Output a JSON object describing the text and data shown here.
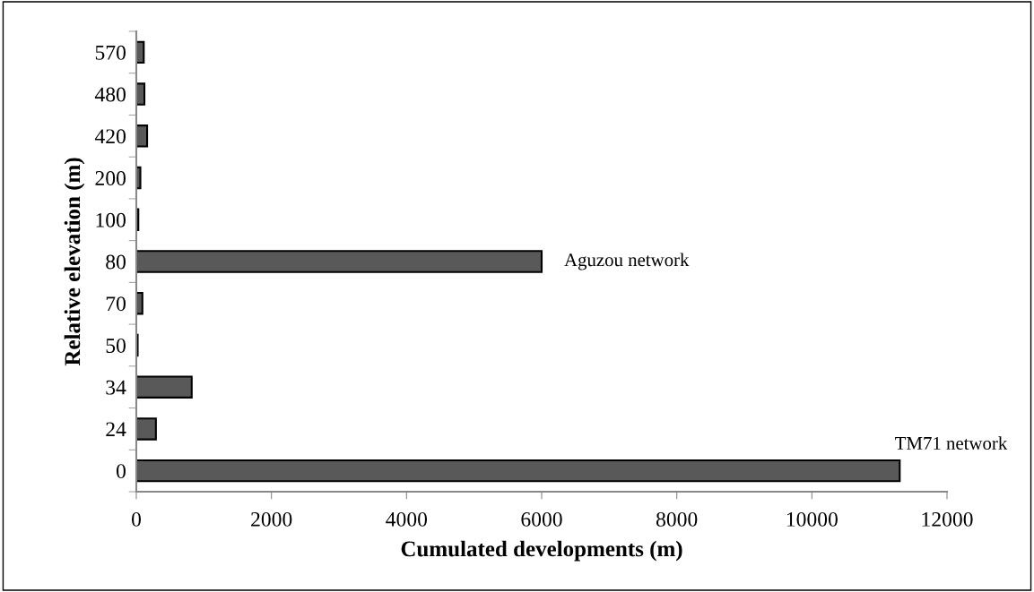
{
  "chart_data": {
    "type": "bar",
    "orientation": "horizontal",
    "xlabel": "Cumulated developments (m)",
    "ylabel": "Relative elevation (m)",
    "categories": [
      "570",
      "480",
      "420",
      "200",
      "100",
      "80",
      "70",
      "50",
      "34",
      "24",
      "0"
    ],
    "values": [
      110,
      120,
      160,
      60,
      30,
      6000,
      90,
      20,
      820,
      290,
      11300
    ],
    "color": "#595959",
    "xlim": [
      0,
      12000
    ],
    "xticks": [
      0,
      2000,
      4000,
      6000,
      8000,
      10000,
      12000
    ],
    "grid": false,
    "legend": false,
    "annotations": [
      {
        "text": "Aguzou network",
        "x": 6000,
        "y": "80"
      },
      {
        "text": "TM71 network",
        "x": 11300,
        "y": "0"
      }
    ]
  }
}
